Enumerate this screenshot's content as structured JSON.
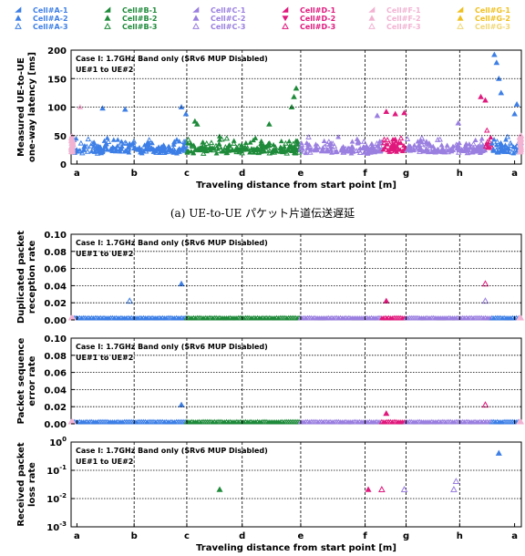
{
  "legend": {
    "entries": [
      {
        "name": "Cell#A-1",
        "color": "#3d7fe6",
        "shape": "tri-up"
      },
      {
        "name": "Cell#A-2",
        "color": "#3d7fe6",
        "shape": "tri-up-solid"
      },
      {
        "name": "Cell#A-3",
        "color": "#3d7fe6",
        "shape": "tri-open"
      },
      {
        "name": "Cell#B-1",
        "color": "#1e8a3a",
        "shape": "tri-up"
      },
      {
        "name": "Cell#B-2",
        "color": "#1e8a3a",
        "shape": "tri-up-solid"
      },
      {
        "name": "Cell#B-3",
        "color": "#1e8a3a",
        "shape": "tri-open"
      },
      {
        "name": "Cell#C-1",
        "color": "#9a7fe0",
        "shape": "tri-up"
      },
      {
        "name": "Cell#C-2",
        "color": "#9a7fe0",
        "shape": "tri-up-solid"
      },
      {
        "name": "Cell#C-3",
        "color": "#9a7fe0",
        "shape": "tri-open"
      },
      {
        "name": "Cell#D-1",
        "color": "#e0197d",
        "shape": "tri-up"
      },
      {
        "name": "Cell#D-2",
        "color": "#e0197d",
        "shape": "tri-down"
      },
      {
        "name": "Cell#D-3",
        "color": "#e0197d",
        "shape": "tri-open"
      },
      {
        "name": "Cell#F-1",
        "color": "#f2b3d2",
        "shape": "tri-up"
      },
      {
        "name": "Cell#F-2",
        "color": "#f2b3d2",
        "shape": "tri-up-solid"
      },
      {
        "name": "Cell#F-3",
        "color": "#f2b3d2",
        "shape": "tri-open"
      },
      {
        "name": "Cell#G-1",
        "color": "#f0c020",
        "shape": "tri-up"
      },
      {
        "name": "Cell#G-2",
        "color": "#f0c020",
        "shape": "tri-up-solid"
      },
      {
        "name": "Cell#G-3",
        "color": "#f0d878",
        "shape": "tri-open"
      }
    ]
  },
  "x_axis": {
    "tick_labels": [
      "a",
      "b",
      "c",
      "d",
      "e",
      "f",
      "g",
      "h",
      "a"
    ],
    "label": "Traveling distance from start point [m]"
  },
  "annotation": {
    "line1": "Case I: 1.7GHz Band only (SRv6 MUP Disabled)",
    "line2": "UE#1 to UE#2"
  },
  "caption_a": "(a) UE-to-UE パケット片道伝送遅延",
  "chart_data": [
    {
      "type": "scatter",
      "ylabel": "Measured UE-to-UE one-way latency [ms]",
      "ylim": [
        0,
        200
      ],
      "yticks": [
        "0",
        "50",
        "100",
        "150",
        "200"
      ],
      "grid": true,
      "segments": [
        {
          "cell": "Cell#A",
          "x_range": [
            "a",
            "c"
          ],
          "color": "#3d7fe6",
          "band": [
            18,
            45
          ]
        },
        {
          "cell": "Cell#B",
          "x_range": [
            "c",
            "e"
          ],
          "color": "#1e8a3a",
          "band": [
            18,
            45
          ]
        },
        {
          "cell": "Cell#C",
          "x_range": [
            "e",
            "g"
          ],
          "color": "#9a7fe0",
          "band": [
            18,
            45
          ]
        },
        {
          "cell": "Cell#D",
          "x_range": [
            "f-g",
            "g"
          ],
          "color": "#e0197d",
          "band": [
            20,
            45
          ]
        },
        {
          "cell": "Cell#C",
          "x_range": [
            "g",
            "h+"
          ],
          "color": "#9a7fe0",
          "band": [
            18,
            45
          ]
        },
        {
          "cell": "Cell#D",
          "x_range": [
            "h+",
            "h+"
          ],
          "color": "#e0197d",
          "band": [
            25,
            60
          ]
        },
        {
          "cell": "Cell#A",
          "x_range": [
            "h+",
            "a"
          ],
          "color": "#3d7fe6",
          "band": [
            18,
            45
          ]
        }
      ],
      "spikes": [
        {
          "x": 0.02,
          "y": 100,
          "color": "#f2b3d2"
        },
        {
          "x": 0.07,
          "y": 98,
          "color": "#3d7fe6"
        },
        {
          "x": 0.12,
          "y": 96,
          "color": "#3d7fe6"
        },
        {
          "x": 0.245,
          "y": 100,
          "color": "#3d7fe6"
        },
        {
          "x": 0.255,
          "y": 88,
          "color": "#3d7fe6"
        },
        {
          "x": 0.275,
          "y": 75,
          "color": "#1e8a3a"
        },
        {
          "x": 0.28,
          "y": 70,
          "color": "#1e8a3a"
        },
        {
          "x": 0.5,
          "y": 133,
          "color": "#1e8a3a"
        },
        {
          "x": 0.495,
          "y": 118,
          "color": "#1e8a3a"
        },
        {
          "x": 0.49,
          "y": 100,
          "color": "#1e8a3a"
        },
        {
          "x": 0.44,
          "y": 70,
          "color": "#1e8a3a"
        },
        {
          "x": 0.68,
          "y": 85,
          "color": "#9a7fe0"
        },
        {
          "x": 0.7,
          "y": 92,
          "color": "#e0197d"
        },
        {
          "x": 0.72,
          "y": 88,
          "color": "#e0197d"
        },
        {
          "x": 0.74,
          "y": 90,
          "color": "#e0197d"
        },
        {
          "x": 0.86,
          "y": 72,
          "color": "#9a7fe0"
        },
        {
          "x": 0.91,
          "y": 118,
          "color": "#e0197d"
        },
        {
          "x": 0.92,
          "y": 112,
          "color": "#e0197d"
        },
        {
          "x": 0.94,
          "y": 192,
          "color": "#3d7fe6"
        },
        {
          "x": 0.945,
          "y": 178,
          "color": "#3d7fe6"
        },
        {
          "x": 0.95,
          "y": 150,
          "color": "#3d7fe6"
        },
        {
          "x": 0.955,
          "y": 125,
          "color": "#3d7fe6"
        },
        {
          "x": 0.99,
          "y": 105,
          "color": "#3d7fe6"
        },
        {
          "x": 0.985,
          "y": 88,
          "color": "#3d7fe6"
        }
      ]
    },
    {
      "type": "scatter",
      "ylabel": "Duplicated packet reception rate",
      "ylim": [
        0,
        0.1
      ],
      "yticks": [
        "0.00",
        "0.02",
        "0.04",
        "0.06",
        "0.08",
        "0.10"
      ],
      "grid": true,
      "points": [
        {
          "x": 0.245,
          "y": 0.04,
          "color": "#3d7fe6",
          "shape": "tri-up-solid"
        },
        {
          "x": 0.13,
          "y": 0.02,
          "color": "#3d7fe6",
          "shape": "tri-open"
        },
        {
          "x": 0.7,
          "y": 0.02,
          "color": "#e0197d",
          "shape": "tri-up-solid"
        },
        {
          "x": 0.92,
          "y": 0.04,
          "color": "#e0197d",
          "shape": "tri-open"
        },
        {
          "x": 0.92,
          "y": 0.02,
          "color": "#9a7fe0",
          "shape": "tri-open"
        }
      ]
    },
    {
      "type": "scatter",
      "ylabel": "Packet sequence error rate",
      "ylim": [
        0,
        0.1
      ],
      "yticks": [
        "0.00",
        "0.02",
        "0.04",
        "0.06",
        "0.08",
        "0.10"
      ],
      "grid": true,
      "points": [
        {
          "x": 0.245,
          "y": 0.02,
          "color": "#3d7fe6",
          "shape": "tri-up-solid"
        },
        {
          "x": 0.7,
          "y": 0.01,
          "color": "#e0197d",
          "shape": "tri-up-solid"
        },
        {
          "x": 0.92,
          "y": 0.02,
          "color": "#e0197d",
          "shape": "tri-open"
        }
      ]
    },
    {
      "type": "scatter",
      "ylabel": "Received packet loss rate",
      "ylim": [
        0.001,
        1
      ],
      "yscale": "log",
      "yticks": [
        "10-3",
        "10-2",
        "10-1",
        "100"
      ],
      "grid": true,
      "points": [
        {
          "x": 0.33,
          "y": 0.018,
          "color": "#1e8a3a",
          "shape": "tri-up-solid"
        },
        {
          "x": 0.66,
          "y": 0.018,
          "color": "#e0197d",
          "shape": "tri-up-solid"
        },
        {
          "x": 0.69,
          "y": 0.018,
          "color": "#e0197d",
          "shape": "tri-open"
        },
        {
          "x": 0.74,
          "y": 0.018,
          "color": "#9a7fe0",
          "shape": "tri-open"
        },
        {
          "x": 0.85,
          "y": 0.018,
          "color": "#9a7fe0",
          "shape": "tri-open"
        },
        {
          "x": 0.855,
          "y": 0.035,
          "color": "#9a7fe0",
          "shape": "tri-open"
        },
        {
          "x": 0.95,
          "y": 0.35,
          "color": "#3d7fe6",
          "shape": "tri-up-solid"
        }
      ]
    }
  ]
}
